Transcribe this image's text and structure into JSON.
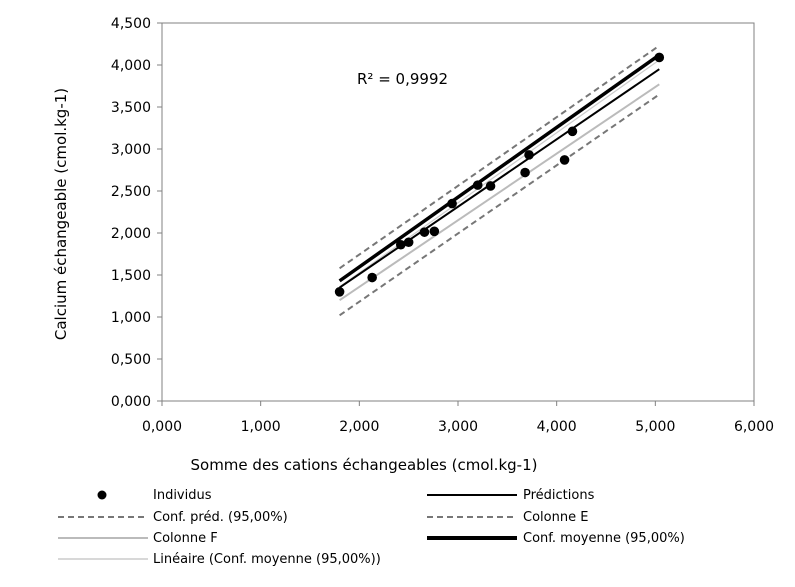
{
  "chart_data": {
    "type": "scatter",
    "xlabel": "Somme des cations échangeables (cmol.kg-1)",
    "ylabel": "Calcium échangeable (cmol.kg-1)",
    "xlim": [
      0,
      6
    ],
    "ylim": [
      0,
      4.5
    ],
    "x_ticks": [
      "0,000",
      "1,000",
      "2,000",
      "3,000",
      "4,000",
      "5,000",
      "6,000"
    ],
    "y_ticks": [
      "0,000",
      "0,500",
      "1,000",
      "1,500",
      "2,000",
      "2,500",
      "3,000",
      "3,500",
      "4,000",
      "4,500"
    ],
    "annotation": "R² = 0,9992",
    "grid": false,
    "legend_position": "bottom",
    "series": [
      {
        "name": "Individus",
        "kind": "points",
        "x": [
          1.8,
          2.13,
          2.42,
          2.5,
          2.66,
          2.76,
          2.94,
          3.2,
          3.33,
          3.68,
          3.72,
          4.08,
          4.16,
          5.04
        ],
        "y": [
          1.3,
          1.47,
          1.86,
          1.89,
          2.01,
          2.02,
          2.35,
          2.57,
          2.56,
          2.72,
          2.93,
          2.87,
          3.21,
          4.09
        ]
      },
      {
        "name": "Prédictions",
        "kind": "line",
        "x": [
          1.8,
          5.04
        ],
        "y": [
          1.35,
          3.95
        ]
      },
      {
        "name": "Conf. préd. (95,00%)",
        "kind": "line",
        "x": [
          1.8,
          5.04
        ],
        "y": [
          1.02,
          3.65
        ]
      },
      {
        "name": "Colonne E",
        "kind": "line",
        "x": [
          1.8,
          5.04
        ],
        "y": [
          1.58,
          4.23
        ]
      },
      {
        "name": "Colonne F",
        "kind": "line",
        "x": [
          1.8,
          5.04
        ],
        "y": [
          1.2,
          3.77
        ]
      },
      {
        "name": "Conf. moyenne (95,00%)",
        "kind": "line",
        "x": [
          1.8,
          5.04
        ],
        "y": [
          1.43,
          4.12
        ]
      },
      {
        "name": "Linéaire (Conf. moyenne (95,00%))",
        "kind": "line",
        "x": [
          1.8,
          5.04
        ],
        "y": [
          1.36,
          4.06
        ]
      }
    ]
  },
  "colors": {
    "points": "#000000",
    "predictions": "#000000",
    "conf_pred": "#777777",
    "colonne_e": "#777777",
    "colonne_f": "#bbbbbb",
    "conf_moyenne": "#000000",
    "lineaire": "#cccccc"
  }
}
